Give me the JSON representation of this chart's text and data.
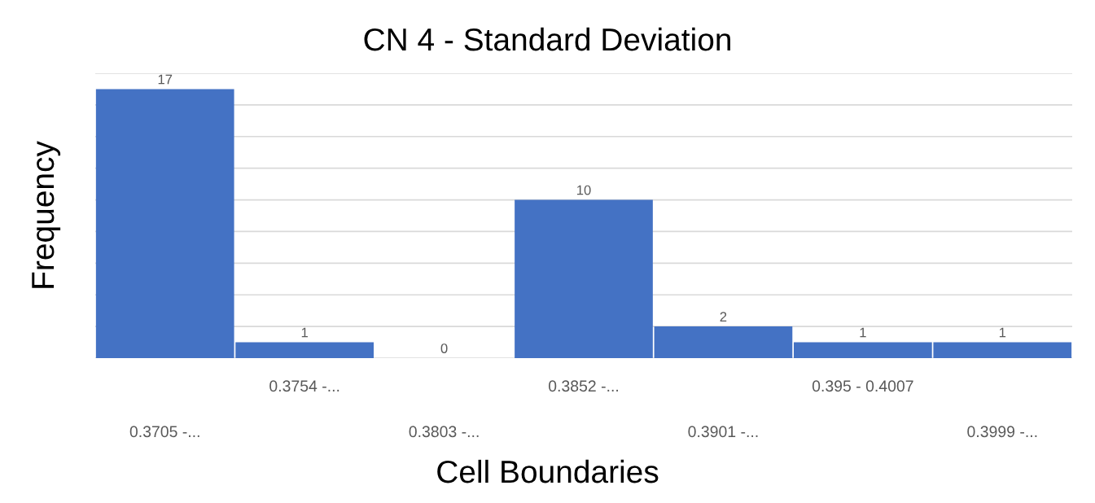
{
  "chart_data": {
    "type": "bar",
    "title": "CN 4 - Standard Deviation",
    "xlabel": "Cell Boundaries",
    "ylabel": "Frequency",
    "categories": [
      "0.3705 -...",
      "0.3754 -...",
      "0.3803 -...",
      "0.3852 -...",
      "0.3901 -...",
      "0.395 - 0.4007",
      "0.3999 -..."
    ],
    "values": [
      17,
      1,
      0,
      10,
      2,
      1,
      1
    ],
    "color": "#4472c4",
    "data_labels": true,
    "ylim": [
      0,
      18
    ],
    "yticks": [
      {
        "value": 0,
        "label": null
      },
      {
        "value": 2,
        "label": null
      },
      {
        "value": 4,
        "label": null
      },
      {
        "value": 6,
        "label": null
      },
      {
        "value": 8,
        "label": null
      },
      {
        "value": 10,
        "label": null
      },
      {
        "value": 12,
        "label": null
      },
      {
        "value": 14,
        "label": null
      },
      {
        "value": 16,
        "label": null
      },
      {
        "value": 18,
        "label": null
      }
    ],
    "grid": "y",
    "tick_labels": "x"
  }
}
